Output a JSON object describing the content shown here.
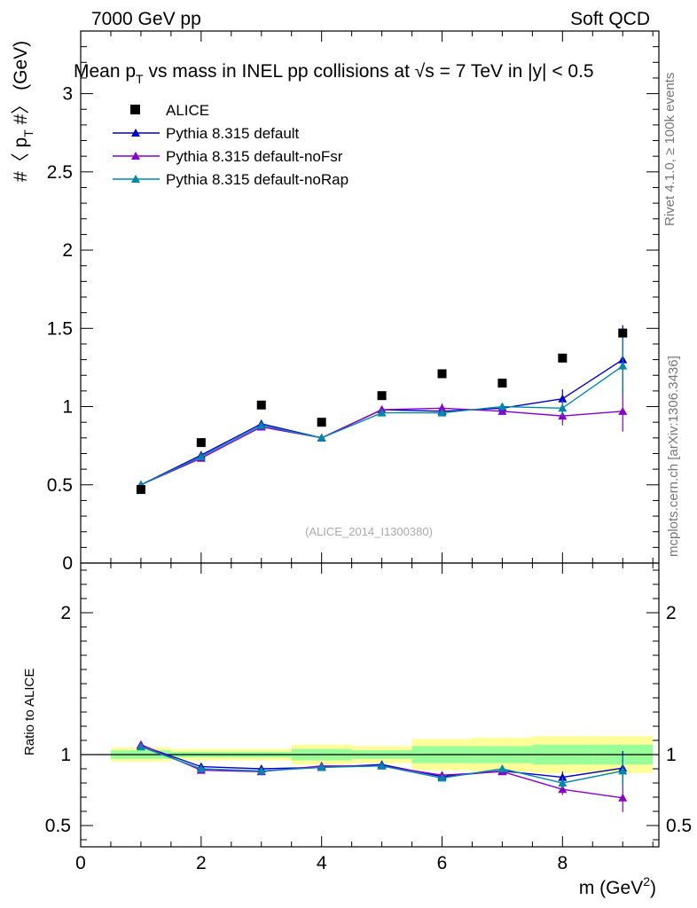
{
  "header": {
    "energy_label": "7000 GeV pp",
    "process_label": "Soft QCD"
  },
  "side": {
    "rivet_label": "Rivet 4.1.0, ≥ 100k events",
    "mcplots_label": "mcplots.cern.ch [arXiv:1306.3436]"
  },
  "chart_data": {
    "type": "scatter",
    "title_prefix": "Mean p",
    "title_mid": " vs mass in INEL pp collisions at ",
    "title_sqrt": "√s",
    "title_suffix": " =  7 TeV in |y| < 0.5",
    "ylabel_main": "#〈 p",
    "ylabel_main_sub": "T",
    "ylabel_main_end": " #〉 (GeV)",
    "ylabel_ratio": "Ratio to ALICE",
    "xlabel_main": "m (GeV",
    "xlabel_sup": "2",
    "xlabel_end": ")",
    "analysis_id": "(ALICE_2014_I1300380)",
    "xlim": [
      0,
      9.6
    ],
    "ylim_main": [
      0,
      3.4
    ],
    "ylim_ratio": [
      0.35,
      2.35
    ],
    "x_ticks": [
      "0",
      "2",
      "4",
      "6",
      "8"
    ],
    "y_ticks_main": [
      "0",
      "0.5",
      "1",
      "1.5",
      "2",
      "2.5",
      "3"
    ],
    "y_ticks_ratio": [
      "0.5",
      "1",
      "2"
    ],
    "y_ticks_ratio_right": [
      "0.5",
      "1",
      "2"
    ],
    "legend_position": "top-left",
    "x": [
      1,
      2,
      3,
      4,
      5,
      6,
      7,
      8,
      9
    ],
    "data": {
      "name": "ALICE",
      "color": "#000000",
      "values": [
        0.47,
        0.77,
        1.01,
        0.9,
        1.07,
        1.21,
        1.15,
        1.31,
        1.47
      ],
      "band_inner": [
        0.03,
        0.02,
        0.02,
        0.04,
        0.03,
        0.06,
        0.06,
        0.07,
        0.07
      ],
      "band_outer": [
        0.05,
        0.04,
        0.04,
        0.07,
        0.06,
        0.11,
        0.12,
        0.13,
        0.13
      ]
    },
    "series": [
      {
        "name": "Pythia 8.315 default",
        "color": "#0000cc",
        "values": [
          0.5,
          0.69,
          0.89,
          0.8,
          0.98,
          0.97,
          0.99,
          1.05,
          1.3
        ],
        "errors": [
          0.005,
          0.005,
          0.01,
          0.01,
          0.01,
          0.015,
          0.02,
          0.06,
          0.22
        ],
        "ratio": [
          1.065,
          0.915,
          0.9,
          0.91,
          0.93,
          0.845,
          0.885,
          0.84,
          0.905
        ],
        "ratio_errors": [
          0.005,
          0.005,
          0.005,
          0.01,
          0.01,
          0.015,
          0.02,
          0.04,
          0.12
        ]
      },
      {
        "name": "Pythia 8.315 default-noFsr",
        "color": "#8800cc",
        "values": [
          0.5,
          0.67,
          0.87,
          0.8,
          0.98,
          0.99,
          0.97,
          0.94,
          0.97
        ],
        "errors": [
          0.005,
          0.005,
          0.01,
          0.01,
          0.01,
          0.03,
          0.02,
          0.06,
          0.13
        ],
        "ratio": [
          1.07,
          0.89,
          0.88,
          0.92,
          0.92,
          0.855,
          0.88,
          0.755,
          0.695
        ],
        "ratio_errors": [
          0.005,
          0.005,
          0.005,
          0.01,
          0.01,
          0.02,
          0.02,
          0.04,
          0.1
        ]
      },
      {
        "name": "Pythia 8.315 default-noRap",
        "color": "#0088aa",
        "values": [
          0.5,
          0.68,
          0.88,
          0.8,
          0.96,
          0.96,
          1.0,
          0.99,
          1.26
        ],
        "errors": [
          0.005,
          0.005,
          0.01,
          0.01,
          0.01,
          0.015,
          0.02,
          0.05,
          0.18
        ],
        "ratio": [
          1.055,
          0.9,
          0.885,
          0.91,
          0.92,
          0.835,
          0.9,
          0.8,
          0.885
        ],
        "ratio_errors": [
          0.005,
          0.005,
          0.005,
          0.01,
          0.01,
          0.015,
          0.02,
          0.04,
          0.11
        ]
      }
    ]
  }
}
